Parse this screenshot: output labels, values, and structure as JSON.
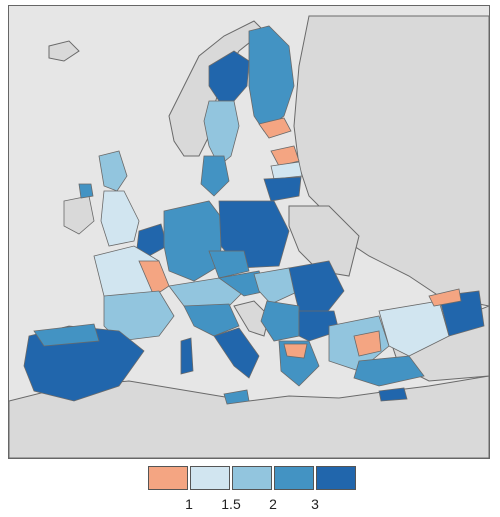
{
  "colors": {
    "sea": "#e6e6e6",
    "land_outside": "#d9d9d9",
    "border": "#6a6a6a",
    "class_below_1": "#f4a582",
    "class_1_1_5": "#d1e5f0",
    "class_1_5_2": "#92c5de",
    "class_2_3": "#4393c3",
    "class_above_3": "#2166ac"
  },
  "legend": {
    "ticks": [
      "1",
      "1.5",
      "2",
      "3"
    ],
    "classes": [
      "class_below_1",
      "class_1_1_5",
      "class_1_5_2",
      "class_2_3",
      "class_above_3"
    ]
  }
}
